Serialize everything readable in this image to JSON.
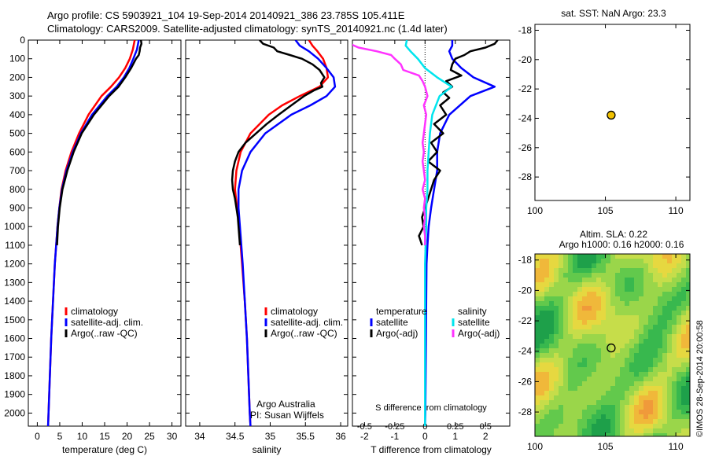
{
  "header": {
    "title_line1": "Argo profile: CS 5903921_104 19-Sep-2014 20140921_386 23.785S 105.411E",
    "title_line2": "Climatology: CARS2009. Satellite-adjusted climatology: synTS_20140921.nc (1.4d later)"
  },
  "footer": {
    "credit": "©IMOS 28-Sep-2014 20:00:58",
    "argo_line1": "Argo Australia",
    "argo_line2": "PI: Susan Wijffels"
  },
  "colors": {
    "climatology": "#ff0000",
    "satellite": "#0000ff",
    "argo": "#000000",
    "sat_salinity": "#00e5ee",
    "argo_salinity": "#ff33ff"
  },
  "depth_axis": {
    "ticks": [
      0,
      100,
      200,
      300,
      400,
      500,
      600,
      700,
      800,
      900,
      1000,
      1100,
      1200,
      1300,
      1400,
      1500,
      1600,
      1700,
      1800,
      1900,
      2000
    ],
    "range": [
      0,
      2070
    ]
  },
  "chart_data": [
    {
      "type": "line",
      "panel": "temperature",
      "xlabel": "temperature (deg C)",
      "xlim": [
        -2,
        32
      ],
      "xticks": [
        0,
        5,
        10,
        15,
        20,
        25,
        30
      ],
      "legend": [
        "climatology",
        "satellite-adj. clim.",
        "Argo(..raw -QC)"
      ],
      "series": [
        {
          "name": "climatology",
          "color": "#ff0000",
          "depth": [
            0,
            50,
            100,
            150,
            200,
            250,
            300,
            400,
            500,
            600,
            700,
            800,
            900,
            1000,
            1200,
            1400,
            1600,
            1800,
            2000,
            2070
          ],
          "values": [
            21.7,
            21.3,
            20.6,
            19.6,
            18.2,
            16.4,
            14.3,
            11.4,
            9.3,
            7.6,
            6.3,
            5.4,
            4.9,
            4.5,
            3.9,
            3.5,
            3.1,
            2.8,
            2.5,
            2.4
          ]
        },
        {
          "name": "satellite-adj. clim.",
          "color": "#0000ff",
          "depth": [
            0,
            50,
            100,
            150,
            200,
            250,
            300,
            400,
            500,
            600,
            700,
            800,
            900,
            1000,
            1200,
            1400,
            1600,
            1800,
            2000,
            2070
          ],
          "values": [
            22.6,
            22.2,
            21.4,
            20.5,
            19.3,
            17.7,
            15.6,
            12.2,
            9.7,
            7.9,
            6.5,
            5.5,
            4.9,
            4.5,
            3.9,
            3.5,
            3.1,
            2.8,
            2.5,
            2.4
          ]
        },
        {
          "name": "Argo(..raw -QC)",
          "color": "#000000",
          "depth": [
            0,
            20,
            40,
            60,
            80,
            100,
            150,
            200,
            250,
            300,
            400,
            500,
            600,
            700,
            800,
            900,
            1000,
            1100
          ],
          "values": [
            23.1,
            23.2,
            22.9,
            22.8,
            22.6,
            22.0,
            20.9,
            19.6,
            18.1,
            16.0,
            12.6,
            9.9,
            8.1,
            6.7,
            5.6,
            5.0,
            4.6,
            4.4
          ]
        }
      ]
    },
    {
      "type": "line",
      "panel": "salinity",
      "xlabel": "salinity",
      "xlim": [
        33.8,
        36.1
      ],
      "xticks": [
        34,
        34.5,
        35,
        35.5,
        36
      ],
      "xticklabels": [
        "34",
        "34.5",
        "35",
        "35.5",
        "36"
      ],
      "legend": [
        "climatology",
        "satellite-adj. clim.",
        "Argo(..raw -QC)"
      ],
      "series": [
        {
          "name": "climatology",
          "color": "#ff0000",
          "depth": [
            0,
            30,
            60,
            100,
            150,
            200,
            250,
            300,
            350,
            400,
            500,
            600,
            700,
            800,
            900,
            1000,
            1200,
            1400,
            1600,
            1800,
            2000,
            2070
          ],
          "values": [
            35.55,
            35.6,
            35.67,
            35.75,
            35.8,
            35.82,
            35.7,
            35.42,
            35.17,
            34.98,
            34.72,
            34.58,
            34.52,
            34.5,
            34.53,
            34.56,
            34.6,
            34.64,
            34.67,
            34.69,
            34.71,
            34.72
          ]
        },
        {
          "name": "satellite-adj. clim.",
          "color": "#0000ff",
          "depth": [
            0,
            30,
            60,
            100,
            150,
            200,
            250,
            300,
            350,
            400,
            500,
            600,
            700,
            800,
            900,
            1000,
            1200,
            1400,
            1600,
            1800,
            2000,
            2070
          ],
          "values": [
            35.36,
            35.42,
            35.55,
            35.68,
            35.8,
            35.9,
            35.92,
            35.8,
            35.57,
            35.3,
            34.93,
            34.72,
            34.6,
            34.55,
            34.55,
            34.57,
            34.61,
            34.64,
            34.67,
            34.69,
            34.71,
            34.72
          ]
        },
        {
          "name": "Argo(..raw -QC)",
          "color": "#000000",
          "depth": [
            0,
            20,
            40,
            60,
            80,
            100,
            130,
            160,
            200,
            230,
            250,
            270,
            300,
            350,
            400,
            450,
            500,
            550,
            600,
            650,
            700,
            750,
            800,
            850,
            900,
            950,
            1000,
            1050,
            1100
          ],
          "values": [
            34.85,
            34.9,
            35.05,
            35.1,
            35.28,
            35.45,
            35.6,
            35.7,
            35.77,
            35.72,
            35.74,
            35.62,
            35.48,
            35.3,
            35.12,
            34.95,
            34.8,
            34.65,
            34.55,
            34.5,
            34.47,
            34.46,
            34.47,
            34.5,
            34.52,
            34.54,
            34.55,
            34.56,
            34.57
          ]
        }
      ]
    },
    {
      "type": "line",
      "panel": "difference",
      "xlabel": "T difference from climatology",
      "top_label": "S difference from climatology",
      "xlim": [
        -2.4,
        2.8
      ],
      "xticks": [
        -2,
        -1,
        0,
        1,
        2
      ],
      "sticks": [
        -0.5,
        -0.25,
        0,
        0.25,
        0.5
      ],
      "sticklabels": [
        "-0.5",
        "-0.25",
        "0",
        "0.25",
        "0.5"
      ],
      "legend_titles": [
        "temperature",
        "salinity"
      ],
      "legend": [
        "satellite",
        "Argo(-adj)",
        "satellite",
        "Argo(-adj)"
      ],
      "series": [
        {
          "name": "satellite",
          "group": "temperature",
          "color": "#0000ff",
          "depth": [
            0,
            30,
            60,
            100,
            150,
            200,
            250,
            300,
            400,
            500,
            600,
            700,
            800,
            900,
            1000,
            1100,
            1200,
            1400,
            1600,
            1800,
            2000,
            2070
          ],
          "values": [
            0.9,
            0.9,
            0.8,
            0.9,
            1.2,
            1.6,
            2.3,
            1.5,
            0.8,
            0.5,
            0.4,
            0.4,
            0.3,
            0.2,
            0.12,
            0.08,
            0.05,
            0.04,
            0.03,
            0.02,
            0.01,
            0.0
          ]
        },
        {
          "name": "Argo(-adj)",
          "group": "temperature",
          "color": "#000000",
          "depth": [
            0,
            20,
            40,
            60,
            80,
            100,
            130,
            160,
            190,
            220,
            250,
            280,
            310,
            350,
            400,
            450,
            500,
            550,
            600,
            650,
            700,
            750,
            800,
            850,
            900,
            950,
            1000,
            1050,
            1100
          ],
          "values": [
            2.4,
            2.3,
            2.0,
            1.5,
            1.3,
            1.0,
            0.9,
            0.85,
            1.2,
            0.7,
            0.9,
            0.6,
            0.8,
            0.5,
            0.7,
            0.3,
            0.6,
            0.2,
            0.4,
            0.1,
            0.5,
            0.3,
            0.2,
            0.1,
            0.0,
            -0.1,
            -0.05,
            -0.2,
            -0.1
          ]
        },
        {
          "name": "satellite",
          "group": "salinity",
          "color": "#00e5ee",
          "depth": [
            0,
            30,
            60,
            100,
            150,
            200,
            250,
            300,
            400,
            500,
            600,
            700,
            800,
            900,
            1000,
            1200,
            1400,
            1600,
            1800,
            2000,
            2070
          ],
          "values": [
            -0.15,
            -0.16,
            -0.12,
            -0.06,
            0.0,
            0.1,
            0.22,
            0.12,
            0.06,
            0.04,
            0.03,
            0.02,
            0.02,
            0.01,
            0.01,
            0.0,
            0.0,
            0.0,
            0.0,
            0.0,
            0.0
          ]
        },
        {
          "name": "Argo(-adj)",
          "group": "salinity",
          "color": "#ff33ff",
          "depth": [
            0,
            20,
            40,
            60,
            80,
            100,
            130,
            160,
            190,
            220,
            250,
            300,
            350,
            400,
            450,
            500,
            550,
            600,
            650,
            700,
            750,
            800,
            850,
            900,
            950,
            1000,
            1050,
            1100
          ],
          "values": [
            -0.7,
            -0.62,
            -0.55,
            -0.4,
            -0.28,
            -0.25,
            -0.2,
            -0.18,
            -0.05,
            -0.02,
            0.0,
            0.02,
            -0.01,
            0.01,
            0.0,
            -0.01,
            -0.02,
            -0.01,
            -0.02,
            -0.01,
            0.0,
            -0.02,
            0.0,
            -0.01,
            0.0,
            -0.01,
            0.0,
            0.0
          ]
        }
      ]
    },
    {
      "type": "scatter",
      "panel": "sst_map",
      "title": "sat. SST: NaN Argo: 23.3",
      "xlim": [
        100,
        111
      ],
      "ylim": [
        -29.6,
        -17.6
      ],
      "xticks": [
        100,
        105,
        110
      ],
      "yticks": [
        -18,
        -20,
        -22,
        -24,
        -26,
        -28
      ],
      "points": [
        {
          "x": 105.411,
          "y": -23.785
        }
      ]
    },
    {
      "type": "heatmap",
      "panel": "sla_map",
      "title_line1": "Altim. SLA: 0.22",
      "title_line2": "Argo h1000: 0.16 h2000: 0.16",
      "xlim": [
        100,
        111
      ],
      "ylim": [
        -29.6,
        -17.6
      ],
      "xticks": [
        100,
        105,
        110
      ],
      "yticks": [
        -18,
        -20,
        -22,
        -24,
        -26,
        -28
      ],
      "points": [
        {
          "x": 105.411,
          "y": -23.785
        }
      ]
    }
  ]
}
